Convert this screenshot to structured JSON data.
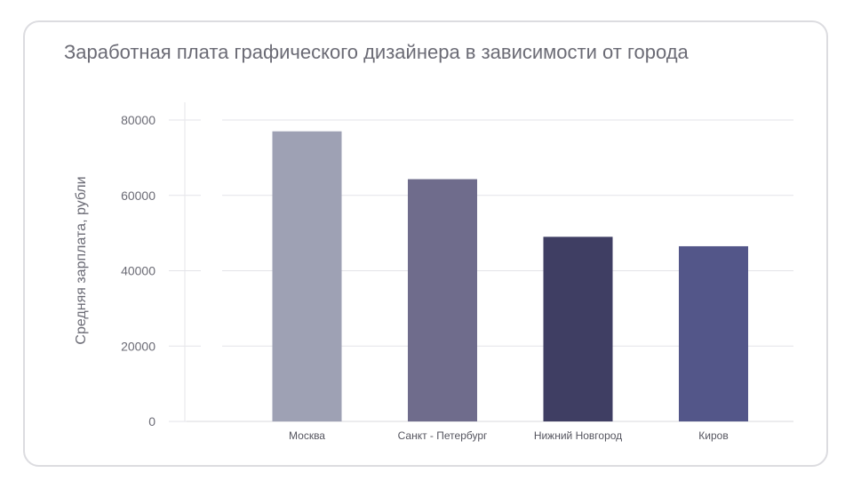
{
  "chart_data": {
    "type": "bar",
    "title": "Заработная плата графического дизайнера в зависимости от города",
    "xlabel": "",
    "ylabel": "Средняя зарплата, рубли",
    "categories": [
      "Москва",
      "Санкт - Петербург",
      "Нижний Новгород",
      "Киров"
    ],
    "values": [
      77000,
      64300,
      49000,
      46500
    ],
    "colors": [
      "#9ea1b4",
      "#6f6c8c",
      "#3f3e63",
      "#535689"
    ],
    "ylim": [
      0,
      80000
    ],
    "yticks": [
      "0",
      "20000",
      "40000",
      "60000",
      "80000"
    ],
    "grid": true
  }
}
